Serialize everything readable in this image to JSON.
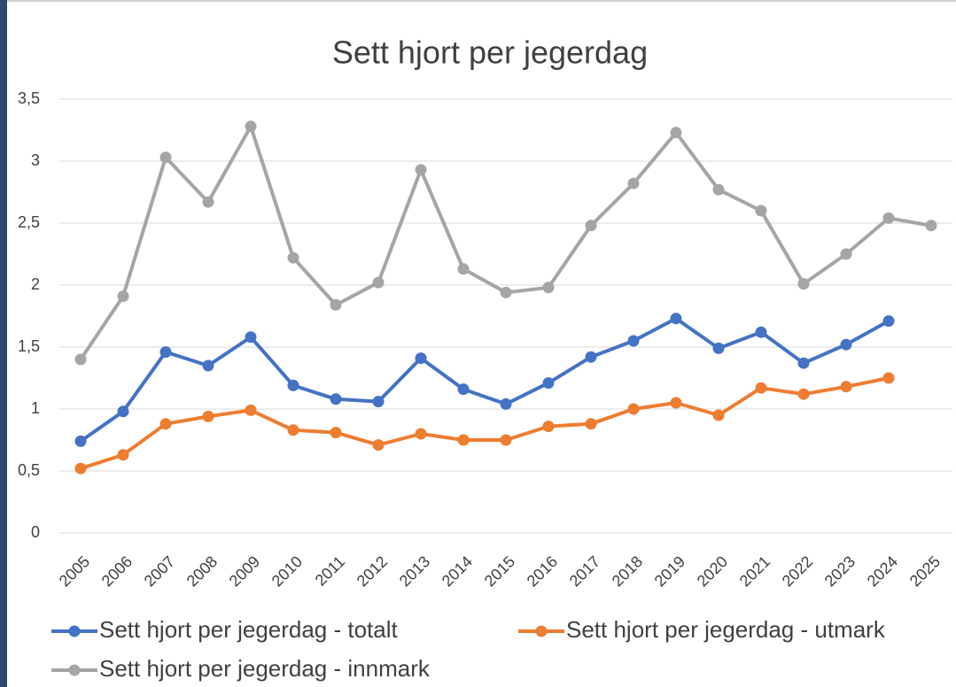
{
  "chart_data": {
    "type": "line",
    "title": "Sett hjort per jegerdag",
    "categories": [
      "2005",
      "2006",
      "2007",
      "2008",
      "2009",
      "2010",
      "2011",
      "2012",
      "2013",
      "2014",
      "2015",
      "2016",
      "2017",
      "2018",
      "2019",
      "2020",
      "2021",
      "2022",
      "2023",
      "2024",
      "2025"
    ],
    "series": [
      {
        "name": "Sett hjort per jegerdag - totalt",
        "color": "#4472c4",
        "values": [
          0.74,
          0.98,
          1.46,
          1.35,
          1.58,
          1.19,
          1.08,
          1.06,
          1.41,
          1.16,
          1.04,
          1.21,
          1.42,
          1.55,
          1.73,
          1.49,
          1.62,
          1.37,
          1.52,
          1.71,
          null
        ]
      },
      {
        "name": "Sett hjort per jegerdag - utmark",
        "color": "#ed7d31",
        "values": [
          0.52,
          0.63,
          0.88,
          0.94,
          0.99,
          0.83,
          0.81,
          0.71,
          0.8,
          0.75,
          0.75,
          0.86,
          0.88,
          1.0,
          1.05,
          0.95,
          1.17,
          1.12,
          1.18,
          1.25,
          null
        ]
      },
      {
        "name": "Sett hjort per jegerdag - innmark",
        "color": "#a5a5a5",
        "values": [
          1.4,
          1.91,
          3.03,
          2.67,
          3.28,
          2.22,
          1.84,
          2.02,
          2.93,
          2.13,
          1.94,
          1.98,
          2.48,
          2.82,
          3.23,
          2.77,
          2.6,
          2.01,
          2.25,
          2.54,
          2.48
        ]
      }
    ],
    "ylim": [
      0,
      3.5
    ],
    "yticks": [
      0,
      {
        "value": 0.5,
        "label": "0,5"
      },
      1,
      {
        "value": 1.5,
        "label": "1,5"
      },
      2,
      {
        "value": 2.5,
        "label": "2,5"
      },
      3,
      {
        "value": 3.5,
        "label": "3,5"
      }
    ],
    "grid": true,
    "legend": "bottom"
  }
}
